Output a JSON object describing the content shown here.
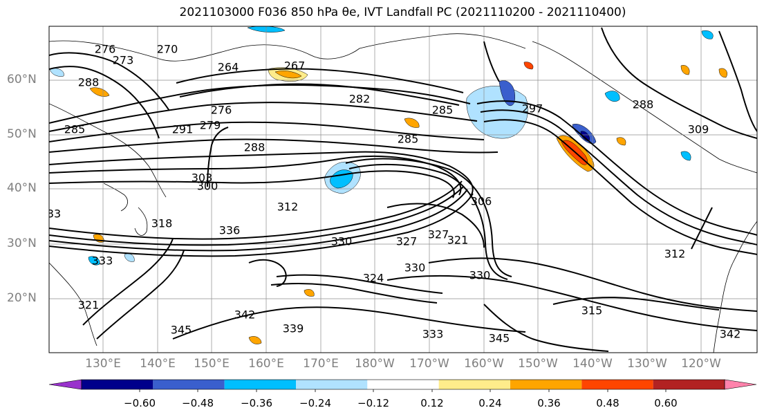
{
  "title": "2021103000 F036 850 hPa θe, IVT Landfall PC (2021110200 - 2021110400)",
  "lat_labels": [
    "60°N",
    "50°N",
    "40°N",
    "30°N",
    "20°N"
  ],
  "lon_labels": [
    "130°E",
    "140°E",
    "150°E",
    "160°E",
    "170°E",
    "180°W",
    "170°W",
    "160°W",
    "150°W",
    "140°W",
    "130°W",
    "120°W"
  ],
  "colorbar": {
    "ticks": [
      "−0.60",
      "−0.48",
      "−0.36",
      "−0.24",
      "−0.12",
      "0.12",
      "0.24",
      "0.36",
      "0.48",
      "0.60"
    ],
    "colors": [
      "#9932cc",
      "#00008b",
      "#3a5fcd",
      "#00bfff",
      "#b0e2ff",
      "#ffffff",
      "#ffec8b",
      "#ffa500",
      "#ff4500",
      "#b22222",
      "#ff82ab"
    ]
  },
  "contour_labels": [
    "276",
    "273",
    "270",
    "288",
    "264",
    "267",
    "282",
    "285",
    "276",
    "279",
    "291",
    "288",
    "285",
    "297",
    "288",
    "285",
    "309",
    "306",
    "312",
    "318",
    "336",
    "330",
    "327",
    "321",
    "333",
    "327",
    "330",
    "324",
    "330",
    "312",
    "315",
    "342",
    "345",
    "339",
    "345",
    "342",
    "333",
    "303",
    "300",
    "321",
    "33"
  ]
}
